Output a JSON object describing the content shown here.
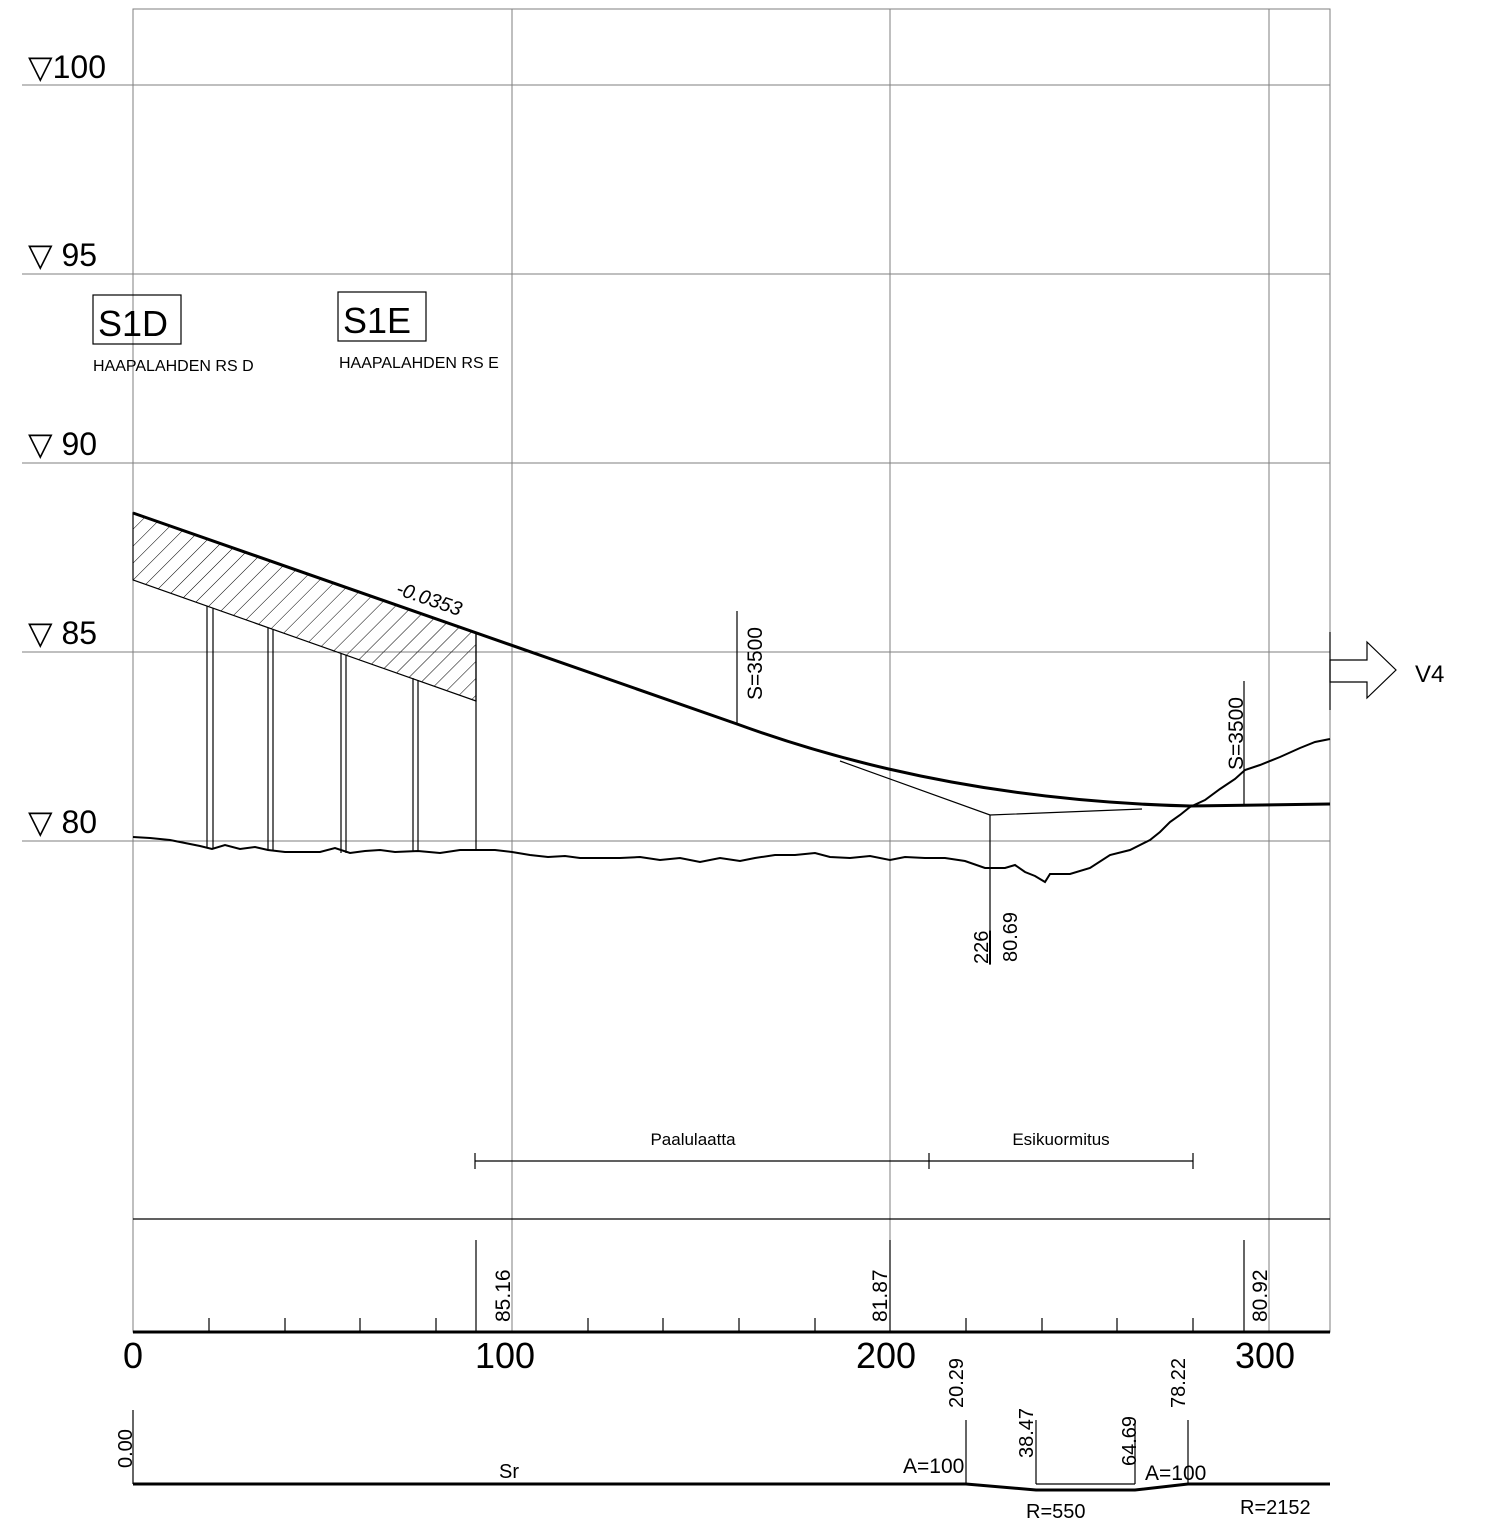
{
  "elevations": [
    "▽100",
    "▽ 95",
    "▽ 90",
    "▽ 85",
    "▽ 80"
  ],
  "labels": {
    "s1d": "S1D",
    "s1d_sub": "HAAPALAHDEN RS D",
    "s1e": "S1E",
    "s1e_sub": "HAAPALAHDEN RS E",
    "gradient": "-0.0353",
    "curve1": "S=3500",
    "curve2": "S=3500",
    "low_station": "226",
    "low_height": "80.69",
    "direction": "V4",
    "zone1": "Paalulaatta",
    "zone2": "Esikuormitus"
  },
  "grade_heights": [
    "85.16",
    "81.87",
    "80.92"
  ],
  "stations": [
    "0",
    "100",
    "200",
    "300"
  ],
  "alignment": {
    "stations": [
      "0.00",
      "20.29",
      "38.47",
      "64.69",
      "78.22"
    ],
    "sr": "Sr",
    "a1": "A=100",
    "a2": "A=100",
    "r1": "R=550",
    "r2": "R=2152"
  }
}
